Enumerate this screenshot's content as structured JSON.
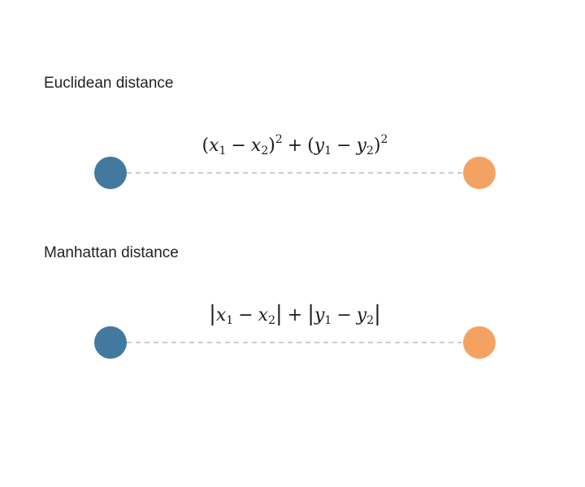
{
  "euclidean": {
    "title": "Euclidean distance",
    "formula": {
      "open1": "(",
      "x": "x",
      "s1": "1",
      "minus": "−",
      "s2": "2",
      "close": ")",
      "exp": "2",
      "plus": "+",
      "y": "y"
    },
    "point_a_color": "#43799e",
    "point_b_color": "#f3a262"
  },
  "manhattan": {
    "title": "Manhattan distance",
    "formula": {
      "bar": "|",
      "x": "x",
      "s1": "1",
      "minus": "−",
      "s2": "2",
      "plus": "+",
      "y": "y"
    },
    "point_a_color": "#43799e",
    "point_b_color": "#f3a262"
  },
  "line_color": "#bbbbbb"
}
